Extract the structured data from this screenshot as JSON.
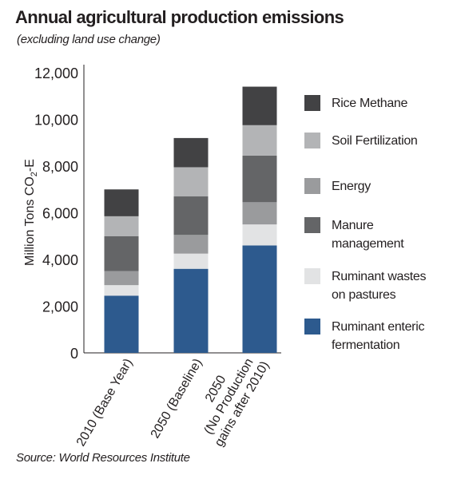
{
  "header": {
    "title": "Annual agricultural production emissions",
    "subtitle": "(excluding land use change)"
  },
  "footer": {
    "source": "Source: World Resources Institute"
  },
  "chart_data": {
    "type": "bar",
    "stacked": true,
    "title": "Annual agricultural production emissions",
    "subtitle": "(excluding land use change)",
    "xlabel": "",
    "ylabel": "Million Tons CO₂-E",
    "ylim": [
      0,
      12000
    ],
    "yticks": [
      0,
      2000,
      4000,
      6000,
      8000,
      10000,
      12000
    ],
    "ytick_labels": [
      "0",
      "2,000",
      "4,000",
      "6,000",
      "8,000",
      "10,000",
      "12,000"
    ],
    "grid": false,
    "legend_position": "right",
    "categories": [
      "2010 (Base Year)",
      "2050 (Baseline)",
      "2050 (No Production gains after 2010)"
    ],
    "category_lines": [
      [
        "2010 (Base Year)"
      ],
      [
        "2050 (Baseline)"
      ],
      [
        "2050",
        "(No Production",
        "gains after 2010)"
      ]
    ],
    "series": [
      {
        "name": "Ruminant enteric fermentation",
        "color": "#2d5a8e",
        "values": [
          2450,
          3600,
          4600
        ]
      },
      {
        "name": "Ruminant wastes on pastures",
        "color": "#e2e3e4",
        "values": [
          450,
          650,
          900
        ]
      },
      {
        "name": "Energy",
        "color": "#9a9b9d",
        "values": [
          600,
          800,
          950
        ]
      },
      {
        "name": "Manure management",
        "color": "#646567",
        "values": [
          1500,
          1650,
          2000
        ]
      },
      {
        "name": "Soil Fertilization",
        "color": "#b3b4b6",
        "values": [
          850,
          1250,
          1300
        ]
      },
      {
        "name": "Rice Methane",
        "color": "#424244",
        "values": [
          1150,
          1250,
          1650
        ]
      }
    ]
  },
  "legend": [
    {
      "label_lines": [
        "Rice Methane"
      ],
      "color": "#424244"
    },
    {
      "label_lines": [
        "Soil Fertilization"
      ],
      "color": "#b3b4b6"
    },
    {
      "label_lines": [
        "Energy"
      ],
      "color": "#9a9b9d"
    },
    {
      "label_lines": [
        "Manure",
        "management"
      ],
      "color": "#646567"
    },
    {
      "label_lines": [
        "Ruminant wastes",
        "on pastures"
      ],
      "color": "#e2e3e4"
    },
    {
      "label_lines": [
        "Ruminant enteric",
        "fermentation"
      ],
      "color": "#2d5a8e"
    }
  ]
}
